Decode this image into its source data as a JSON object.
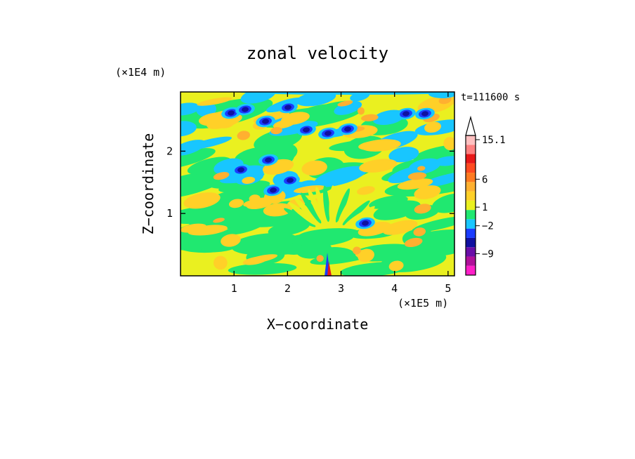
{
  "chart_data": {
    "type": "heatmap",
    "title": "zonal velocity",
    "xlabel": "X−coordinate",
    "ylabel": "Z−coordinate",
    "x_unit": "(×1E5 m)",
    "y_unit": "(×1E4 m)",
    "time_label": "t=111600 s",
    "xlim": [
      0,
      5.12
    ],
    "ylim": [
      0,
      2.95
    ],
    "x_ticks": [
      {
        "value": 1,
        "label": "1"
      },
      {
        "value": 2,
        "label": "2"
      },
      {
        "value": 3,
        "label": "3"
      },
      {
        "value": 4,
        "label": "4"
      },
      {
        "value": 5,
        "label": "5"
      }
    ],
    "y_ticks": [
      {
        "value": 1,
        "label": "1"
      },
      {
        "value": 2,
        "label": "2"
      }
    ],
    "colorbar": {
      "colors": [
        "#ff1fc8",
        "#b0109a",
        "#6a0ea8",
        "#1010a0",
        "#1a3cff",
        "#18c6ff",
        "#20e870",
        "#eaf020",
        "#ffd028",
        "#ffb030",
        "#ff7a20",
        "#ff4a20",
        "#e81818",
        "#ff8080",
        "#ffc0c0"
      ],
      "labels": [
        "15.1",
        "6",
        "1",
        "−2",
        "−9"
      ]
    },
    "grid": false,
    "legend_position": "right"
  }
}
